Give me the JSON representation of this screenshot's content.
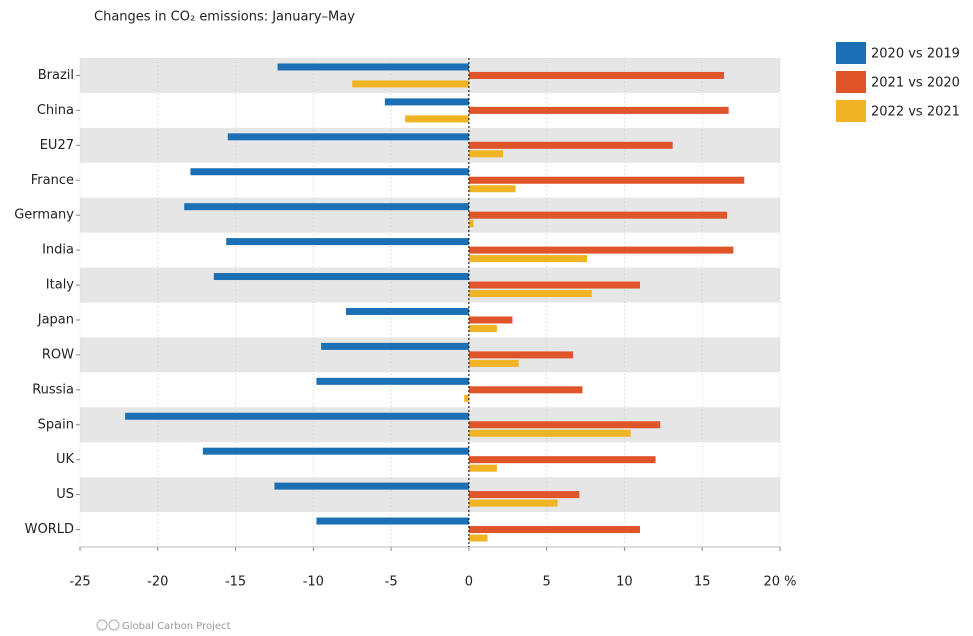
{
  "chart_data": {
    "type": "hbar",
    "title": "Changes in CO₂ emissions: January–May",
    "source": "Global Carbon Project",
    "categories": [
      "Brazil",
      "China",
      "EU27",
      "France",
      "Germany",
      "India",
      "Italy",
      "Japan",
      "ROW",
      "Russia",
      "Spain",
      "UK",
      "US",
      "WORLD"
    ],
    "series": [
      {
        "name": "2020 vs 2019",
        "color": "#1a6fb5",
        "values": [
          -12.3,
          -5.4,
          -15.5,
          -17.9,
          -18.3,
          -15.6,
          -16.4,
          -7.9,
          -9.5,
          -9.8,
          -22.1,
          -17.1,
          -12.5,
          -9.8
        ]
      },
      {
        "name": "2021 vs 2020",
        "color": "#e0542a",
        "values": [
          16.4,
          16.7,
          13.1,
          17.7,
          16.6,
          17.0,
          11.0,
          2.8,
          6.7,
          7.3,
          12.3,
          12.0,
          7.1,
          11.0
        ]
      },
      {
        "name": "2022 vs 2021",
        "color": "#f0b323",
        "values": [
          -7.5,
          -4.1,
          2.2,
          3.0,
          0.3,
          7.6,
          7.9,
          1.8,
          3.2,
          -0.3,
          10.4,
          1.8,
          5.7,
          1.2
        ]
      }
    ],
    "xlim": [
      -25,
      20
    ],
    "xticks": [
      -25,
      -20,
      -15,
      -10,
      -5,
      0,
      5,
      10,
      15,
      {
        "value": 20,
        "label": "20 %"
      }
    ],
    "grid": true,
    "legend": "right"
  }
}
